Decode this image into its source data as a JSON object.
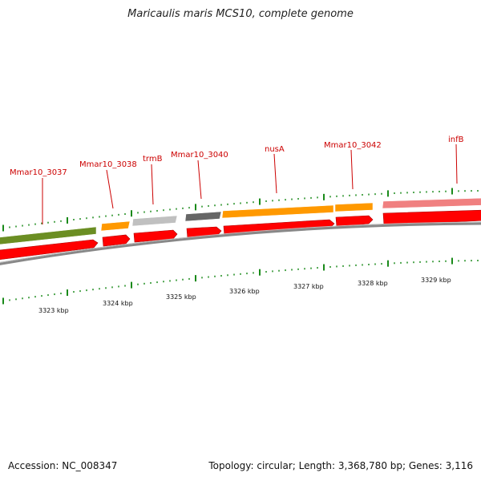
{
  "title": "Maricaulis maris MCS10, complete genome",
  "footer": {
    "accession": "Accession: NC_008347",
    "summary": "Topology: circular; Length: 3,368,780 bp; Genes: 3,116"
  },
  "colors": {
    "label": "#cc0000",
    "tick": "#1a8a1a",
    "cds_strand": "#ff0000",
    "backbone": "#888888"
  },
  "kbp_labels": [
    "3323 kbp",
    "3324 kbp",
    "3325 kbp",
    "3326 kbp",
    "3327 kbp",
    "3328 kbp",
    "3329 kbp"
  ],
  "genes": [
    {
      "name": "Mmar10_3037",
      "color": "#6b8e23"
    },
    {
      "name": "Mmar10_3038",
      "color": "#ff9900"
    },
    {
      "name": "trmB",
      "color": "#c0c0c0"
    },
    {
      "name": "Mmar10_3040",
      "color": "#666666"
    },
    {
      "name": "nusA",
      "color": "#ff9900"
    },
    {
      "name": "Mmar10_3042",
      "color": "#ff9900"
    },
    {
      "name": "infB",
      "color": "#f08080"
    }
  ]
}
